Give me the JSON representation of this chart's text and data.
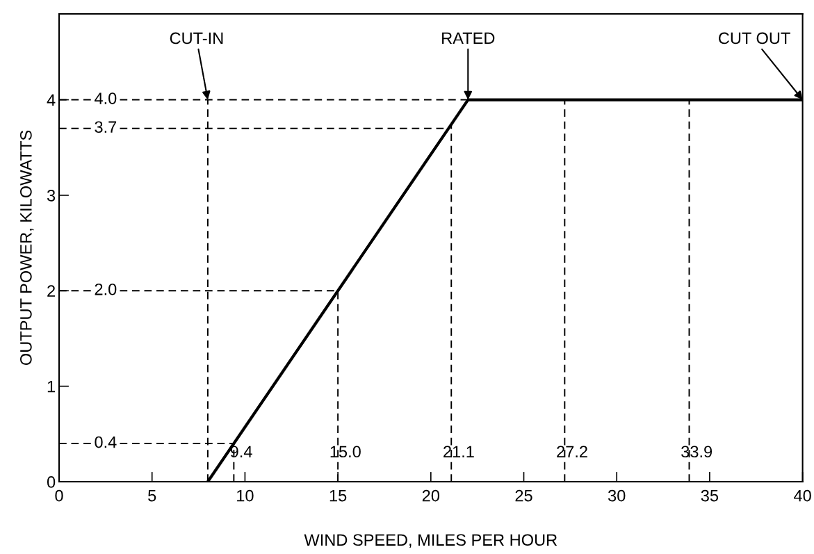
{
  "chart_data": {
    "type": "line",
    "xlabel": "WIND SPEED, MILES PER HOUR",
    "ylabel": "OUTPUT POWER, KILOWATTS",
    "series": [
      {
        "x": [
          8.0,
          22.0,
          40.0
        ],
        "values": [
          0,
          4.0,
          4.0
        ],
        "color": "#000000"
      }
    ],
    "xlim": [
      0,
      40
    ],
    "ylim": [
      0,
      4.9
    ],
    "xticks": [
      0,
      5,
      10,
      15,
      20,
      25,
      30,
      35,
      40
    ],
    "yticks": [
      0,
      1,
      2,
      3,
      4
    ],
    "grid": false,
    "marker": "none",
    "line_style": "solid",
    "ref_lines": [
      {
        "axis": "y",
        "value": 4.0,
        "label": "4.0",
        "line_style": "dashed"
      },
      {
        "axis": "y",
        "value": 3.7,
        "label": "3.7",
        "line_style": "dashed"
      },
      {
        "axis": "y",
        "value": 2.0,
        "label": "2.0",
        "line_style": "dashed"
      },
      {
        "axis": "y",
        "value": 0.4,
        "label": "0.4",
        "line_style": "dashed"
      },
      {
        "axis": "x",
        "value": 8.0,
        "label": null,
        "line_style": "dashed"
      },
      {
        "axis": "x",
        "value": 9.4,
        "label": "9.4",
        "line_style": "dashed"
      },
      {
        "axis": "x",
        "value": 15.0,
        "label": "15.0",
        "line_style": "dashed"
      },
      {
        "axis": "x",
        "value": 21.1,
        "label": "21.1",
        "line_style": "dashed"
      },
      {
        "axis": "x",
        "value": 27.2,
        "label": "27.2",
        "line_style": "dashed"
      },
      {
        "axis": "x",
        "value": 33.9,
        "label": "33.9",
        "line_style": "dashed"
      }
    ],
    "annotations": [
      {
        "text": "CUT-IN",
        "x": 8.0,
        "y": 4.0
      },
      {
        "text": "RATED",
        "x": 22.0,
        "y": 4.0
      },
      {
        "text": "CUT OUT",
        "x": 40.0,
        "y": 4.0
      }
    ]
  }
}
